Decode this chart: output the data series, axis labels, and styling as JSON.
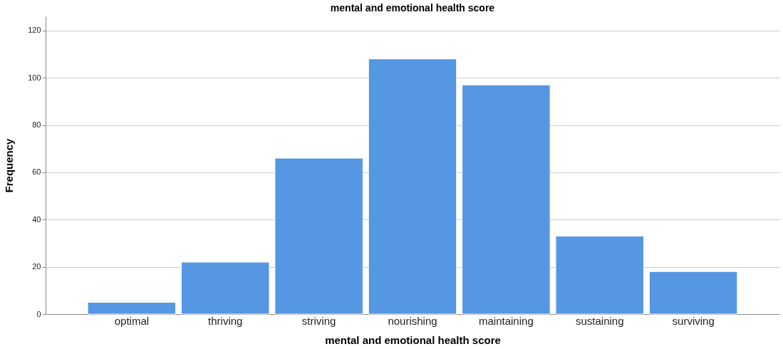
{
  "chart_data": {
    "type": "bar",
    "title": "mental and emotional health score",
    "xlabel": "mental and emotional health score",
    "ylabel": "Frequency",
    "categories": [
      "optimal",
      "thriving",
      "striving",
      "nourishing",
      "maintaining",
      "sustaining",
      "surviving"
    ],
    "values": [
      5,
      22,
      66,
      108,
      97,
      33,
      18
    ],
    "color": "#5597e3",
    "ylim": [
      0,
      126
    ],
    "yticks": [
      0,
      20,
      40,
      60,
      80,
      100,
      120
    ],
    "grid": "y"
  }
}
